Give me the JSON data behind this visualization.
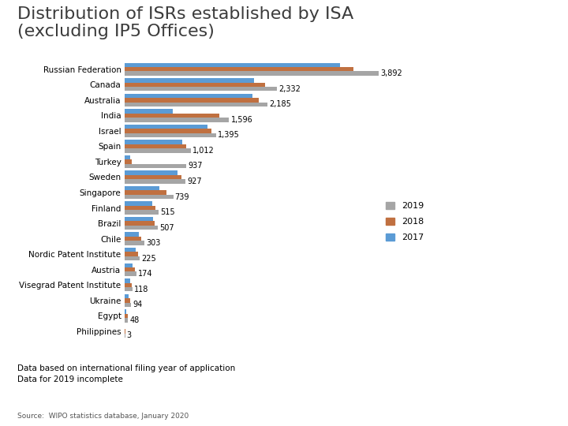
{
  "title_line1": "Distribution of ISRs established by ISA",
  "title_line2": "(excluding IP5 Offices)",
  "title_fontsize": 16,
  "categories": [
    "Russian Federation",
    "Canada",
    "Australia",
    "India",
    "Israel",
    "Spain",
    "Turkey",
    "Sweden",
    "Singapore",
    "Finland",
    "Brazil",
    "Chile",
    "Nordic Patent Institute",
    "Austria",
    "Visegrad Patent Institute",
    "Ukraine",
    "Egypt",
    "Philippines"
  ],
  "values_2019": [
    3892,
    2332,
    2185,
    1596,
    1395,
    1012,
    937,
    927,
    739,
    515,
    507,
    303,
    225,
    174,
    118,
    94,
    48,
    3
  ],
  "values_2018": [
    3500,
    2150,
    2050,
    1450,
    1320,
    940,
    110,
    860,
    640,
    470,
    460,
    255,
    195,
    155,
    98,
    75,
    38,
    2
  ],
  "values_2017": [
    3300,
    1980,
    1950,
    730,
    1270,
    880,
    75,
    800,
    530,
    420,
    430,
    215,
    170,
    120,
    75,
    55,
    25,
    1
  ],
  "color_2019": "#a5a5a5",
  "color_2018": "#c07040",
  "color_2017": "#5b9bd5",
  "bar_height": 0.28,
  "footnote1": "Data based on international filing year of application",
  "footnote2": "Data for 2019 incomplete",
  "source": "Source:  WIPO statistics database, January 2020",
  "background_color": "#ffffff",
  "label_fontsize": 7,
  "legend_fontsize": 8,
  "tick_fontsize": 7.5
}
